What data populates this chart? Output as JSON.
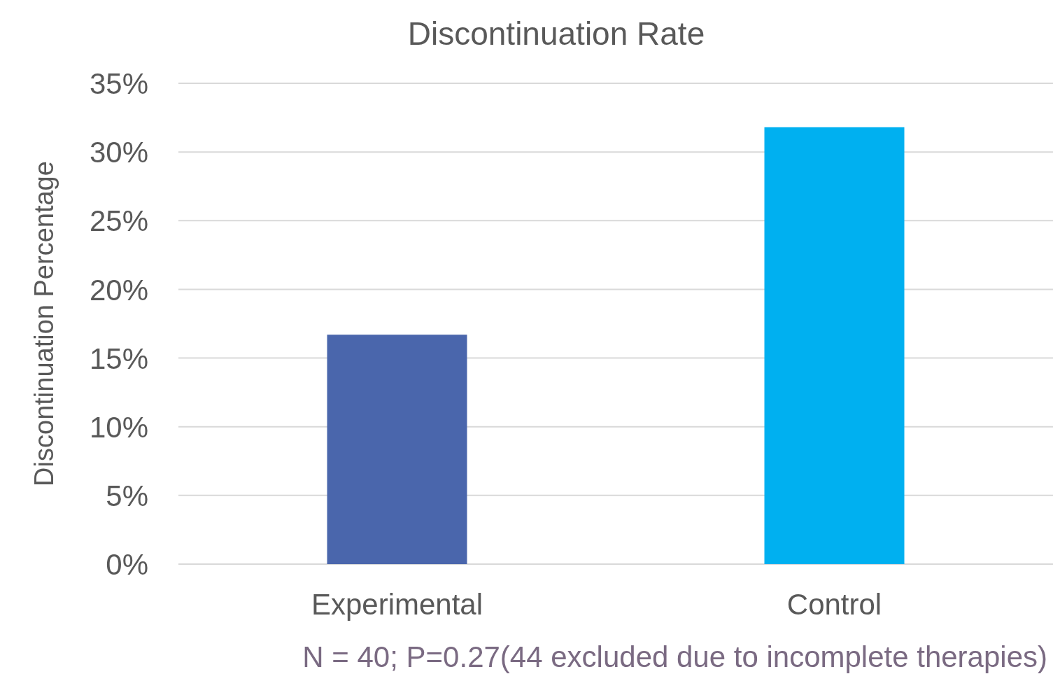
{
  "chart_data": {
    "type": "bar",
    "title": "Discontinuation Rate",
    "ylabel": "Discontinuation Percentage",
    "categories": [
      "Experimental",
      "Control"
    ],
    "series": [
      {
        "values": [
          16.7,
          31.8
        ],
        "colors": [
          "#4a66ac",
          "#00b0f0"
        ]
      }
    ],
    "ylim": [
      0,
      35
    ],
    "yticks": [
      {
        "value": 0,
        "label": "0%"
      },
      {
        "value": 5,
        "label": "5%"
      },
      {
        "value": 10,
        "label": "10%"
      },
      {
        "value": 15,
        "label": "15%"
      },
      {
        "value": 20,
        "label": "20%"
      },
      {
        "value": 25,
        "label": "25%"
      },
      {
        "value": 30,
        "label": "30%"
      },
      {
        "value": 35,
        "label": "35%"
      }
    ],
    "grid": "y",
    "annotations": [
      "N = 40; P=0.27(44 excluded due to incomplete therapies)"
    ]
  }
}
